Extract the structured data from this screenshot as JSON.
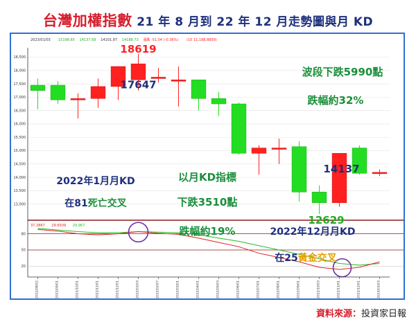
{
  "title": {
    "main": "台灣加權指數",
    "sub": " 21 年 8 月到 22 年 12 月走勢圖與月 KD"
  },
  "source": {
    "label": "資料來源：",
    "value": "投資家日報"
  },
  "colors": {
    "up": "#ff2020",
    "down": "#22dd22",
    "frame": "#2d6fd2",
    "annot_green": "#1a8f3a",
    "annot_blue": "#1e2f7c",
    "annot_red": "#d61f2e",
    "gold": "#e8a000",
    "k_line": "#e02020",
    "d_line": "#22bb22",
    "circle": "#6a2fa0",
    "divider": "#8b1a1a"
  },
  "header_info": {
    "date": "2023/01/03",
    "values": [
      {
        "text": "15198.65",
        "color": "#22aa22"
      },
      {
        "text": "14137.69",
        "color": "#22aa22"
      },
      {
        "text": "14101.97",
        "color": "#333333"
      },
      {
        "text": "14188.73",
        "color": "#22aa22"
      },
      {
        "text": "漲跌 -51.04 (-0.36%)",
        "color": "#ff2020"
      },
      {
        "text": "(10 11,188.8859)",
        "color": "#ff2020"
      }
    ]
  },
  "kd_header": [
    {
      "text": "37.2867",
      "color": "#e02020"
    },
    {
      "text": "29.6509",
      "color": "#e02020"
    },
    {
      "text": "29.967",
      "color": "#22bb22"
    }
  ],
  "chart_data": {
    "type": "candlestick",
    "yticks": [
      13000,
      13500,
      14000,
      14500,
      15000,
      15500,
      16000,
      16500,
      17000,
      17500,
      18000,
      18500
    ],
    "ytick_labels": [
      "13,000",
      "13,500",
      "14,000",
      "14,500",
      "15,000",
      "15,500",
      "16,000",
      "16,500",
      "17,000",
      "17,500",
      "18,000",
      "18,500"
    ],
    "ylim": [
      12500,
      18850
    ],
    "x_labels": [
      "2021/08/02",
      "2021/09/01",
      "2021/10/01",
      "2021/11/01",
      "2021/12/01",
      "2022/01/03",
      "2022/02/07",
      "2022/03/01",
      "2022/04/01",
      "2022/05/03",
      "2022/06/01",
      "2022/07/01",
      "2022/08/01",
      "2022/09/01",
      "2022/10/03",
      "2022/11/01",
      "2022/12/01",
      "2023/01/03"
    ],
    "candles": [
      {
        "o": 17450,
        "h": 17700,
        "l": 16550,
        "c": 17250
      },
      {
        "o": 17450,
        "h": 17600,
        "l": 16750,
        "c": 16900
      },
      {
        "o": 16900,
        "h": 17150,
        "l": 16200,
        "c": 16950
      },
      {
        "o": 16950,
        "h": 17700,
        "l": 16600,
        "c": 17400
      },
      {
        "o": 17400,
        "h": 18150,
        "l": 16900,
        "c": 18150
      },
      {
        "o": 17650,
        "h": 18619,
        "l": 17250,
        "c": 18250
      },
      {
        "o": 17700,
        "h": 18100,
        "l": 17550,
        "c": 17750
      },
      {
        "o": 17650,
        "h": 18150,
        "l": 16650,
        "c": 17650
      },
      {
        "o": 17650,
        "h": 17650,
        "l": 16500,
        "c": 16950
      },
      {
        "o": 16950,
        "h": 17200,
        "l": 16300,
        "c": 16750
      },
      {
        "o": 16750,
        "h": 16800,
        "l": 14850,
        "c": 14900
      },
      {
        "o": 14900,
        "h": 15200,
        "l": 14100,
        "c": 15100
      },
      {
        "o": 15050,
        "h": 15450,
        "l": 14500,
        "c": 15100
      },
      {
        "o": 15150,
        "h": 15350,
        "l": 13100,
        "c": 13450
      },
      {
        "o": 13450,
        "h": 13700,
        "l": 12629,
        "c": 13050
      },
      {
        "o": 13050,
        "h": 14900,
        "l": 12900,
        "c": 14900
      },
      {
        "o": 15100,
        "h": 15200,
        "l": 14100,
        "c": 14150
      },
      {
        "o": 14150,
        "h": 14300,
        "l": 14050,
        "c": 14188
      }
    ],
    "callouts": [
      {
        "text": "18619",
        "idx": 5,
        "at": 18619,
        "color": "#ff2020"
      },
      {
        "text": "17647",
        "idx": 5,
        "at": 17647,
        "color": "#1e2f7c"
      },
      {
        "text": "14137",
        "idx": 16,
        "at": 14137,
        "color": "#1e2f7c"
      },
      {
        "text": "12629",
        "idx": 14,
        "at": 12629,
        "color": "#22aa22"
      }
    ],
    "kd": {
      "ylim": [
        0,
        100
      ],
      "yticks": [
        20,
        50,
        80
      ],
      "ytick_labels": [
        "20",
        "50",
        "80"
      ],
      "k_series": [
        88,
        85,
        80,
        78,
        80,
        84,
        81,
        79,
        72,
        64,
        56,
        44,
        36,
        28,
        18,
        14,
        18,
        28
      ],
      "d_series": [
        90,
        87,
        84,
        82,
        82,
        84,
        83,
        82,
        78,
        72,
        66,
        58,
        50,
        42,
        34,
        25,
        22,
        25
      ]
    }
  },
  "annotations": {
    "wave_drop": "波段下跌5990點",
    "wave_pct": "跌幅約32%",
    "jan_kd": "2022年1月月KD",
    "jan_cross": "在81死亡交叉",
    "jan_cross_pre": "在81",
    "jan_cross_em": "死亡交叉",
    "monthly_kd": "以月KD指標",
    "monthly_drop": "下跌3510點",
    "monthly_pct": "跌幅約19%",
    "dec_kd": "2022年12月月KD",
    "dec_cross_pre": "在25",
    "dec_cross_em": "黃金交叉"
  }
}
